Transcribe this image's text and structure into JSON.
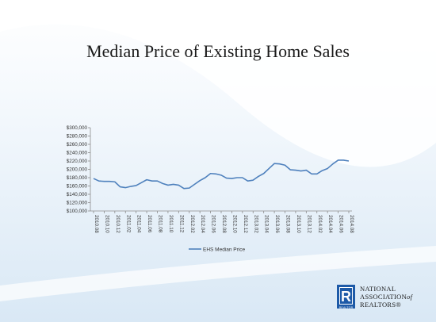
{
  "slide": {
    "title": "Median Price of Existing Home Sales",
    "logo": {
      "line1": "NATIONAL",
      "line2": "ASSOCIATION",
      "line2_of": "of",
      "line3": "REALTORS®",
      "mark_letter": "R",
      "mark_caption": "REALTOR"
    }
  },
  "chart_data": {
    "type": "line",
    "title": "",
    "xlabel": "",
    "ylabel": "",
    "ylim": [
      100000,
      300000
    ],
    "yticks": [
      100000,
      120000,
      140000,
      160000,
      180000,
      200000,
      220000,
      240000,
      260000,
      280000,
      300000
    ],
    "ytick_labels": [
      "$100,000",
      "$120,000",
      "$140,000",
      "$160,000",
      "$180,000",
      "$200,000",
      "$220,000",
      "$240,000",
      "$260,000",
      "$280,000",
      "$300,000"
    ],
    "xtick_labels": [
      "2010.08",
      "2010.10",
      "2010.12",
      "2011.02",
      "2011.04",
      "2011.06",
      "2011.08",
      "2011.10",
      "2011.12",
      "2012.02",
      "2012.04",
      "2012.06",
      "2012.08",
      "2012.10",
      "2012.12",
      "2013.02",
      "2013.04",
      "2013.06",
      "2013.08",
      "2013.10",
      "2013.12",
      "2014.02",
      "2014.04",
      "2014.06",
      "2014.08"
    ],
    "x": [
      "2010.08",
      "2010.09",
      "2010.10",
      "2010.11",
      "2010.12",
      "2011.01",
      "2011.02",
      "2011.03",
      "2011.04",
      "2011.05",
      "2011.06",
      "2011.07",
      "2011.08",
      "2011.09",
      "2011.10",
      "2011.11",
      "2011.12",
      "2012.01",
      "2012.02",
      "2012.03",
      "2012.04",
      "2012.05",
      "2012.06",
      "2012.07",
      "2012.08",
      "2012.09",
      "2012.10",
      "2012.11",
      "2012.12",
      "2013.01",
      "2013.02",
      "2013.03",
      "2013.04",
      "2013.05",
      "2013.06",
      "2013.07",
      "2013.08",
      "2013.09",
      "2013.10",
      "2013.11",
      "2013.12",
      "2014.01",
      "2014.02",
      "2014.03",
      "2014.04",
      "2014.05",
      "2014.06",
      "2014.07",
      "2014.08"
    ],
    "series": [
      {
        "name": "EHS Median Price",
        "color": "#4f81bd",
        "values": [
          178000,
          172000,
          171000,
          171000,
          170000,
          158000,
          156000,
          159000,
          161000,
          168000,
          175000,
          172000,
          172000,
          166000,
          162000,
          164000,
          162000,
          154000,
          155000,
          164000,
          173000,
          180000,
          190000,
          189000,
          186000,
          179000,
          178000,
          180000,
          180000,
          172000,
          174000,
          183000,
          190000,
          202000,
          214000,
          213000,
          210000,
          199000,
          198000,
          196000,
          198000,
          189000,
          189000,
          197000,
          202000,
          213000,
          222000,
          222000,
          220000
        ]
      }
    ],
    "legend": "bottom",
    "grid": false
  }
}
